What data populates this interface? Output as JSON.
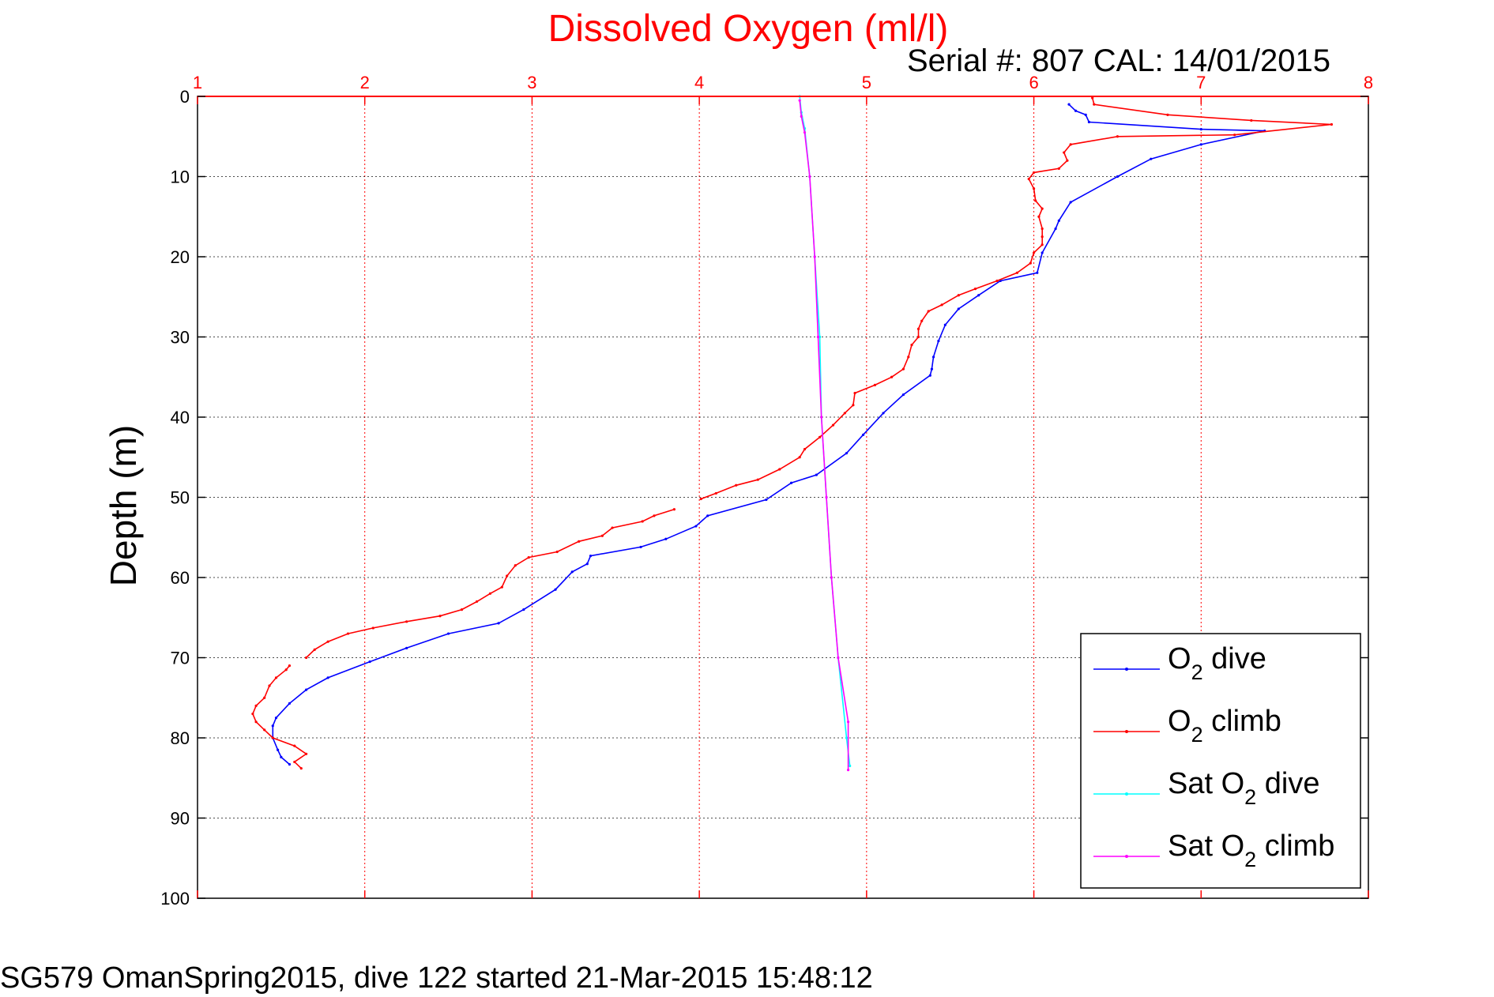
{
  "chart_data": {
    "type": "line",
    "title": "Dissolved Oxygen (ml/l)",
    "subtitle": "Serial #: 807  CAL: 14/01/2015",
    "footer": "SG579 OmanSpring2015, dive 122 started 21-Mar-2015 15:48:12",
    "ylabel": "Depth (m)",
    "xlabel": "",
    "xlim": [
      1,
      8
    ],
    "ylim": [
      0,
      100
    ],
    "y_reversed": true,
    "x_axis_position": "top",
    "x_ticks": [
      1,
      2,
      3,
      4,
      5,
      6,
      7,
      8
    ],
    "y_ticks": [
      0,
      10,
      20,
      30,
      40,
      50,
      60,
      70,
      80,
      90,
      100
    ],
    "grid": true,
    "legend_position": "bottom-right",
    "colors": {
      "title": "#ff0000",
      "x_axis": "#ff0000",
      "grid_x": "#ff0000",
      "grid_y": "#000000"
    },
    "series": [
      {
        "name": "O2 dive",
        "legend_main": "O",
        "legend_sub": "2",
        "legend_suffix": " dive",
        "color": "#0000ff",
        "points": [
          [
            6.21,
            1.0
          ],
          [
            6.25,
            1.8
          ],
          [
            6.31,
            2.3
          ],
          [
            6.33,
            3.2
          ],
          [
            7.0,
            4.1
          ],
          [
            7.38,
            4.3
          ],
          [
            7.0,
            6.0
          ],
          [
            6.7,
            7.8
          ],
          [
            6.5,
            10.0
          ],
          [
            6.22,
            13.2
          ],
          [
            6.15,
            15.5
          ],
          [
            6.13,
            16.5
          ],
          [
            6.05,
            19.5
          ],
          [
            6.02,
            22.0
          ],
          [
            5.8,
            23.0
          ],
          [
            5.67,
            24.8
          ],
          [
            5.55,
            26.5
          ],
          [
            5.47,
            28.5
          ],
          [
            5.43,
            30.5
          ],
          [
            5.4,
            32.5
          ],
          [
            5.39,
            34.0
          ],
          [
            5.38,
            34.8
          ],
          [
            5.22,
            37.2
          ],
          [
            5.1,
            39.5
          ],
          [
            4.98,
            42.2
          ],
          [
            4.88,
            44.5
          ],
          [
            4.7,
            47.2
          ],
          [
            4.55,
            48.2
          ],
          [
            4.4,
            50.3
          ],
          [
            4.05,
            52.3
          ],
          [
            3.98,
            53.6
          ],
          [
            3.8,
            55.2
          ],
          [
            3.65,
            56.2
          ],
          [
            3.35,
            57.3
          ],
          [
            3.33,
            58.3
          ],
          [
            3.24,
            59.3
          ],
          [
            3.14,
            61.5
          ],
          [
            2.95,
            64.0
          ],
          [
            2.8,
            65.7
          ],
          [
            2.5,
            67.0
          ],
          [
            2.25,
            68.8
          ],
          [
            2.03,
            70.5
          ],
          [
            1.78,
            72.5
          ],
          [
            1.65,
            74.0
          ],
          [
            1.55,
            75.7
          ],
          [
            1.47,
            77.5
          ],
          [
            1.45,
            78.5
          ],
          [
            1.45,
            80.0
          ],
          [
            1.48,
            81.5
          ],
          [
            1.5,
            82.4
          ],
          [
            1.55,
            83.3
          ]
        ]
      },
      {
        "name": "O2 climb",
        "legend_main": "O",
        "legend_sub": "2",
        "legend_suffix": " climb",
        "color": "#ff0000",
        "points": [
          [
            1.62,
            83.8
          ],
          [
            1.58,
            83.0
          ],
          [
            1.65,
            82.0
          ],
          [
            1.58,
            81.0
          ],
          [
            1.45,
            80.0
          ],
          [
            1.4,
            79.0
          ],
          [
            1.35,
            78.0
          ],
          [
            1.33,
            77.0
          ],
          [
            1.35,
            76.0
          ],
          [
            1.4,
            75.0
          ],
          [
            1.43,
            73.5
          ],
          [
            1.47,
            72.5
          ],
          [
            1.53,
            71.5
          ],
          [
            1.55,
            71.0
          ],
          null,
          [
            1.65,
            70.0
          ],
          [
            1.7,
            69.0
          ],
          [
            1.78,
            68.0
          ],
          [
            1.9,
            67.0
          ],
          [
            2.05,
            66.3
          ],
          [
            2.25,
            65.5
          ],
          [
            2.45,
            64.8
          ],
          [
            2.58,
            64.0
          ],
          [
            2.67,
            63.0
          ],
          [
            2.75,
            62.0
          ],
          [
            2.82,
            61.2
          ],
          [
            2.85,
            59.8
          ],
          [
            2.9,
            58.5
          ],
          [
            2.98,
            57.5
          ],
          [
            3.15,
            56.8
          ],
          [
            3.28,
            55.5
          ],
          [
            3.42,
            54.8
          ],
          [
            3.48,
            53.8
          ],
          [
            3.66,
            53.0
          ],
          [
            3.73,
            52.3
          ],
          [
            3.85,
            51.5
          ],
          null,
          [
            4.01,
            50.2
          ],
          [
            4.1,
            49.5
          ],
          [
            4.22,
            48.5
          ],
          [
            4.35,
            47.8
          ],
          [
            4.48,
            46.5
          ],
          [
            4.6,
            45.0
          ],
          [
            4.63,
            44.0
          ],
          [
            4.72,
            42.5
          ],
          [
            4.8,
            41.0
          ],
          [
            4.87,
            39.5
          ],
          [
            4.92,
            38.5
          ],
          [
            4.93,
            37.0
          ],
          [
            5.05,
            36.0
          ],
          [
            5.15,
            35.0
          ],
          [
            5.22,
            34.0
          ],
          [
            5.25,
            32.5
          ],
          [
            5.27,
            31.0
          ],
          [
            5.31,
            30.0
          ],
          [
            5.31,
            29.0
          ],
          [
            5.33,
            28.0
          ],
          [
            5.37,
            26.8
          ],
          [
            5.45,
            26.0
          ],
          [
            5.55,
            24.8
          ],
          [
            5.65,
            24.0
          ],
          [
            5.78,
            23.0
          ],
          [
            5.9,
            22.0
          ],
          [
            5.98,
            20.8
          ],
          [
            6.0,
            19.5
          ],
          [
            6.05,
            18.5
          ],
          [
            6.05,
            17.5
          ],
          [
            6.05,
            16.5
          ],
          [
            6.03,
            15.0
          ],
          [
            6.05,
            14.0
          ],
          [
            6.01,
            13.0
          ],
          [
            6.0,
            11.5
          ],
          [
            5.97,
            10.3
          ],
          [
            6.0,
            9.5
          ],
          [
            6.15,
            9.0
          ],
          [
            6.2,
            8.0
          ],
          [
            6.18,
            7.0
          ],
          [
            6.22,
            6.0
          ],
          [
            6.5,
            5.0
          ],
          [
            7.2,
            4.8
          ],
          [
            7.78,
            3.5
          ],
          [
            7.3,
            3.0
          ],
          [
            6.8,
            2.3
          ],
          [
            6.36,
            1.0
          ],
          [
            6.35,
            0.2
          ]
        ]
      },
      {
        "name": "Sat O2 dive",
        "legend_main": "Sat O",
        "legend_sub": "2",
        "legend_suffix": " dive",
        "color": "#00ffff",
        "points": [
          [
            4.6,
            0.0
          ],
          [
            4.61,
            2.0
          ],
          [
            4.63,
            4.0
          ],
          [
            4.66,
            10.0
          ],
          [
            4.69,
            20.0
          ],
          [
            4.72,
            30.0
          ],
          [
            4.73,
            40.0
          ],
          [
            4.76,
            50.0
          ],
          [
            4.79,
            60.0
          ],
          [
            4.83,
            70.0
          ],
          [
            4.88,
            80.0
          ],
          [
            4.9,
            83.5
          ]
        ]
      },
      {
        "name": "Sat O2 climb",
        "legend_main": "Sat O",
        "legend_sub": "2",
        "legend_suffix": " climb",
        "color": "#ff00ff",
        "points": [
          [
            4.6,
            0.5
          ],
          [
            4.61,
            2.5
          ],
          [
            4.63,
            4.5
          ],
          [
            4.66,
            10.0
          ],
          [
            4.69,
            20.0
          ],
          [
            4.71,
            30.0
          ],
          [
            4.73,
            40.0
          ],
          [
            4.76,
            50.0
          ],
          [
            4.79,
            60.0
          ],
          [
            4.83,
            70.0
          ],
          [
            4.89,
            78.0
          ],
          [
            4.89,
            84.0
          ]
        ]
      }
    ]
  }
}
